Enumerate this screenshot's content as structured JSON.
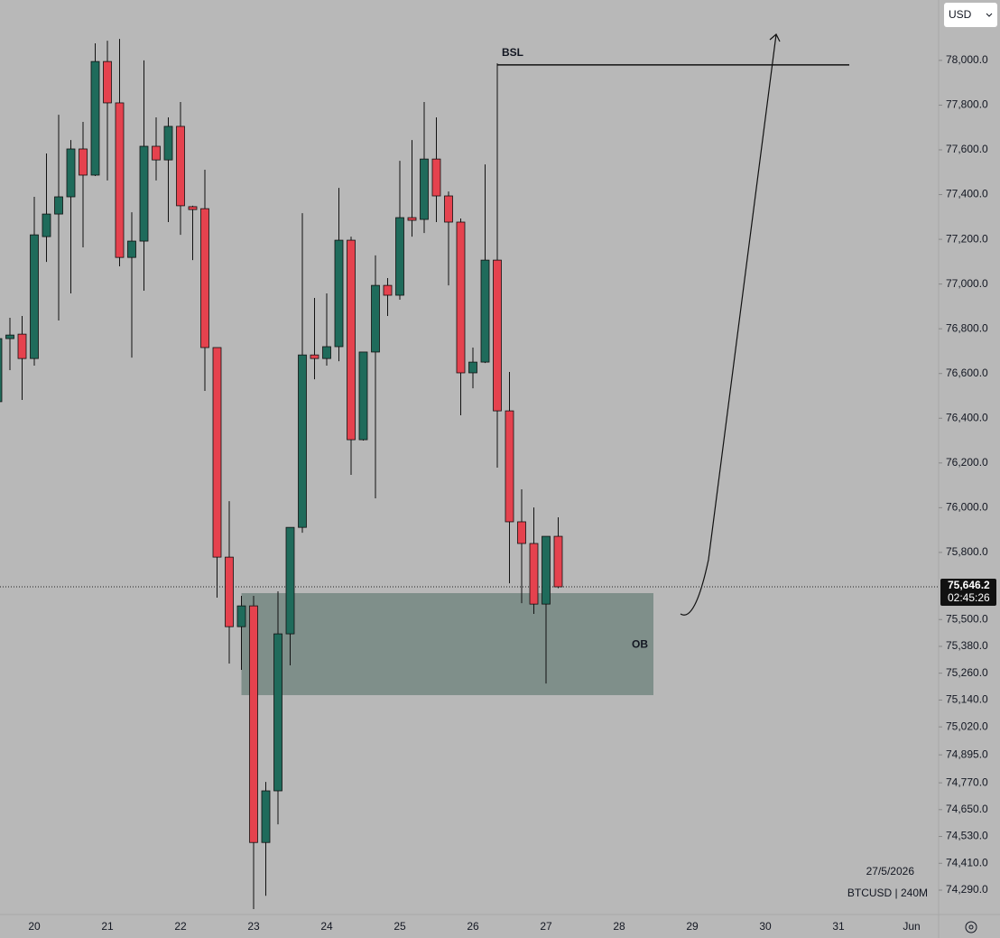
{
  "chart_data": {
    "type": "candlestick",
    "symbol": "BTCUSD | 240M",
    "date": "27/5/2026",
    "currency": "USD",
    "up_color": "#1f6b5b",
    "down_color": "#e5424e",
    "ylim": [
      74181,
      78270
    ],
    "yticks": [
      {
        "value": 78000,
        "label": "78,000.0"
      },
      {
        "value": 77800,
        "label": "77,800.0"
      },
      {
        "value": 77600,
        "label": "77,600.0"
      },
      {
        "value": 77400,
        "label": "77,400.0"
      },
      {
        "value": 77200,
        "label": "77,200.0"
      },
      {
        "value": 77000,
        "label": "77,000.0"
      },
      {
        "value": 76800,
        "label": "76,800.0"
      },
      {
        "value": 76600,
        "label": "76,600.0"
      },
      {
        "value": 76400,
        "label": "76,400.0"
      },
      {
        "value": 76200,
        "label": "76,200.0"
      },
      {
        "value": 76000,
        "label": "76,000.0"
      },
      {
        "value": 75800,
        "label": "75,800.0"
      },
      {
        "value": 75500,
        "label": "75,500.0"
      },
      {
        "value": 75380,
        "label": "75,380.0"
      },
      {
        "value": 75260,
        "label": "75,260.0"
      },
      {
        "value": 75140,
        "label": "75,140.0"
      },
      {
        "value": 75020,
        "label": "75,020.0"
      },
      {
        "value": 74895,
        "label": "74,895.0"
      },
      {
        "value": 74770,
        "label": "74,770.0"
      },
      {
        "value": 74650,
        "label": "74,650.0"
      },
      {
        "value": 74530,
        "label": "74,530.0"
      },
      {
        "value": 74410,
        "label": "74,410.0"
      },
      {
        "value": 74290,
        "label": "74,290.0"
      }
    ],
    "x_labels": [
      "20",
      "21",
      "22",
      "23",
      "24",
      "25",
      "26",
      "27",
      "28",
      "29",
      "30",
      "31",
      "Jun"
    ],
    "open": [
      76474,
      76756,
      76776,
      76667,
      77212,
      77313,
      77390,
      77604,
      77487,
      77995,
      77810,
      77119,
      77192,
      77616,
      77555,
      77705,
      77346,
      77337,
      76716,
      75779,
      75468,
      75561,
      74503,
      74734,
      75436,
      75912,
      76683,
      76667,
      76720,
      77196,
      76304,
      76696,
      76994,
      76950,
      77297,
      77289,
      77559,
      77394,
      77277,
      76603,
      76651,
      77107,
      76433,
      75937,
      75840,
      75569,
      75872
    ],
    "high": [
      76776,
      76849,
      76857,
      77390,
      77584,
      77757,
      77644,
      77725,
      78076,
      78088,
      78096,
      77321,
      78000,
      77745,
      77745,
      77814,
      77350,
      77511,
      76716,
      76029,
      75606,
      75606,
      74774,
      75626,
      75912,
      77317,
      76938,
      76958,
      77430,
      77212,
      76696,
      77128,
      77027,
      77551,
      77644,
      77814,
      77745,
      77414,
      77293,
      76716,
      77535,
      77987,
      76607,
      76082,
      76001,
      75872,
      75957
    ],
    "low": [
      76433,
      76615,
      76482,
      76635,
      77099,
      76837,
      76958,
      77164,
      77483,
      77463,
      77079,
      76671,
      76970,
      77463,
      77277,
      77220,
      77107,
      76522,
      75598,
      75303,
      75275,
      74205,
      74265,
      74584,
      75295,
      75888,
      76574,
      76635,
      76655,
      76147,
      76300,
      76042,
      76857,
      76930,
      77212,
      77228,
      77277,
      76994,
      76413,
      76534,
      76647,
      76179,
      75662,
      75573,
      75525,
      75214,
      75640
    ],
    "close": [
      76756,
      76772,
      76667,
      77220,
      77313,
      77390,
      77604,
      77487,
      77995,
      77810,
      77119,
      77192,
      77616,
      77555,
      77705,
      77350,
      77333,
      76716,
      75779,
      75468,
      75561,
      74503,
      74734,
      75436,
      75912,
      76683,
      76667,
      76720,
      77196,
      76304,
      76696,
      76994,
      76950,
      77297,
      77285,
      77559,
      77394,
      77277,
      76603,
      76651,
      77107,
      76433,
      75937,
      75840,
      75569,
      75872,
      75646.2
    ],
    "last_price": {
      "value": 75646.2,
      "label": "75,646.2"
    },
    "countdown": "02:45:26",
    "annotations": [
      {
        "text": "BSL",
        "value": 77980
      },
      {
        "text": "OB",
        "top": 75618,
        "bottom": 75162
      }
    ]
  }
}
